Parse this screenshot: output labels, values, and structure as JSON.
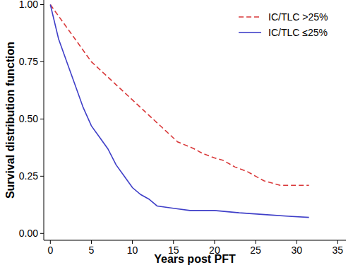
{
  "chart_data": {
    "type": "line",
    "x_label": "Years post PFT",
    "y_label": "Survival distribution function",
    "xlim": [
      -0.8,
      36
    ],
    "ylim": [
      -0.03,
      1.02
    ],
    "xticks": [
      0,
      5,
      10,
      15,
      20,
      25,
      30,
      35
    ],
    "yticks": [
      {
        "value": 0,
        "label": "0.00"
      },
      {
        "value": 0.25,
        "label": "0.25"
      },
      {
        "value": 0.5,
        "label": "0.50"
      },
      {
        "value": 0.75,
        "label": "0.75"
      },
      {
        "value": 1,
        "label": "1.00"
      }
    ],
    "legend": "top-right",
    "grid": false,
    "series": [
      {
        "name": "IC/TLC >25%",
        "color": "#d9393a",
        "line_style": "dashed",
        "x": [
          0,
          1,
          2,
          3,
          4,
          5,
          6.5,
          8,
          9.5,
          11,
          12.5,
          14,
          15.5,
          17.5,
          18.5,
          20,
          21,
          22.5,
          24,
          25,
          26,
          27,
          28,
          31.5
        ],
        "values": [
          1,
          0.95,
          0.9,
          0.85,
          0.8,
          0.75,
          0.7,
          0.65,
          0.6,
          0.55,
          0.5,
          0.45,
          0.4,
          0.37,
          0.35,
          0.33,
          0.32,
          0.29,
          0.27,
          0.25,
          0.23,
          0.22,
          0.21,
          0.21
        ]
      },
      {
        "name": "IC/TLC ≤25%",
        "color": "#3f3fc8",
        "line_style": "solid",
        "x": [
          0,
          1,
          2,
          3,
          4,
          5,
          6,
          7,
          8,
          9,
          10,
          11,
          12,
          13,
          15,
          17,
          20,
          23,
          27,
          29,
          31.5
        ],
        "values": [
          1,
          0.85,
          0.75,
          0.65,
          0.55,
          0.47,
          0.42,
          0.37,
          0.3,
          0.25,
          0.2,
          0.17,
          0.15,
          0.12,
          0.11,
          0.1,
          0.1,
          0.09,
          0.08,
          0.075,
          0.07
        ]
      }
    ]
  }
}
